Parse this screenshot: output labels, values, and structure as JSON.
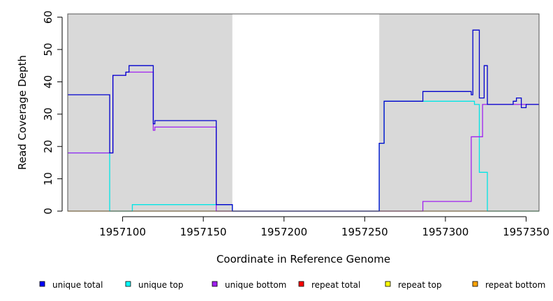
{
  "chart_data": {
    "type": "line",
    "xlabel": "Coordinate in Reference Genome",
    "ylabel": "Read Coverage Depth",
    "xlim": [
      1957066,
      1957358
    ],
    "ylim": [
      0,
      61
    ],
    "xticks": [
      1957100,
      1957150,
      1957200,
      1957250,
      1957300,
      1957350
    ],
    "xtick_labels": [
      "1957100",
      "1957150",
      "1957200",
      "1957250",
      "1957300",
      "1957350"
    ],
    "yticks": [
      0,
      10,
      20,
      30,
      40,
      50,
      60
    ],
    "ytick_labels": [
      "0",
      "10",
      "20",
      "30",
      "40",
      "50",
      "60"
    ],
    "shaded_regions": [
      [
        1957066,
        1957168
      ],
      [
        1957259,
        1957358
      ]
    ],
    "shade_color": "#d9d9d9",
    "legend_position": "bottom",
    "series": [
      {
        "name": "repeat bottom",
        "color": "#ffa500",
        "x": [
          1957066,
          1957358
        ],
        "y": [
          0,
          0
        ]
      },
      {
        "name": "repeat total",
        "color": "#ff0000",
        "x": [],
        "y": []
      },
      {
        "name": "repeat top",
        "color": "#ffff00",
        "x": [],
        "y": []
      },
      {
        "name": "unique top",
        "color": "#00e5e5",
        "x": [
          1957066,
          1957092,
          1957092,
          1957106,
          1957106,
          1957158,
          1957158,
          1957168,
          1957168,
          1957259,
          1957259,
          1957262,
          1957262,
          1957318,
          1957318,
          1957321,
          1957321,
          1957326,
          1957326,
          1957358
        ],
        "y": [
          18,
          18,
          0,
          0,
          2,
          2,
          2,
          2,
          0,
          0,
          21,
          21,
          34,
          34,
          33,
          33,
          12,
          12,
          0,
          0
        ]
      },
      {
        "name": "unique bottom",
        "color": "#a020f0",
        "x": [
          1957066,
          1957092,
          1957092,
          1957094,
          1957094,
          1957102,
          1957102,
          1957104,
          1957104,
          1957119,
          1957119,
          1957120,
          1957120,
          1957158,
          1957158,
          1957286,
          1957286,
          1957316,
          1957316,
          1957323,
          1957323,
          1957358
        ],
        "y": [
          18,
          18,
          18,
          18,
          42,
          42,
          43,
          43,
          43,
          43,
          25,
          25,
          26,
          26,
          0,
          0,
          3,
          3,
          23,
          23,
          33,
          33
        ]
      },
      {
        "name": "unique total",
        "color": "#0000cd",
        "x": [
          1957066,
          1957092,
          1957092,
          1957094,
          1957094,
          1957102,
          1957102,
          1957104,
          1957104,
          1957119,
          1957119,
          1957120,
          1957120,
          1957158,
          1957158,
          1957168,
          1957168,
          1957259,
          1957259,
          1957262,
          1957262,
          1957286,
          1957286,
          1957316,
          1957316,
          1957317,
          1957317,
          1957321,
          1957321,
          1957324,
          1957324,
          1957326,
          1957326,
          1957342,
          1957342,
          1957344,
          1957344,
          1957347,
          1957347,
          1957350,
          1957350,
          1957358
        ],
        "y": [
          36,
          36,
          18,
          18,
          42,
          42,
          43,
          43,
          45,
          45,
          27,
          27,
          28,
          28,
          2,
          2,
          0,
          0,
          21,
          21,
          34,
          34,
          37,
          37,
          36,
          36,
          56,
          56,
          35,
          35,
          45,
          45,
          33,
          33,
          34,
          34,
          35,
          35,
          32,
          32,
          33,
          33
        ]
      }
    ],
    "legend": [
      {
        "name": "unique total",
        "color": "#0000ff"
      },
      {
        "name": "unique top",
        "color": "#00ffff"
      },
      {
        "name": "unique bottom",
        "color": "#a020f0"
      },
      {
        "name": "repeat total",
        "color": "#ff0000"
      },
      {
        "name": "repeat top",
        "color": "#ffff00"
      },
      {
        "name": "repeat bottom",
        "color": "#ffa500"
      }
    ]
  }
}
